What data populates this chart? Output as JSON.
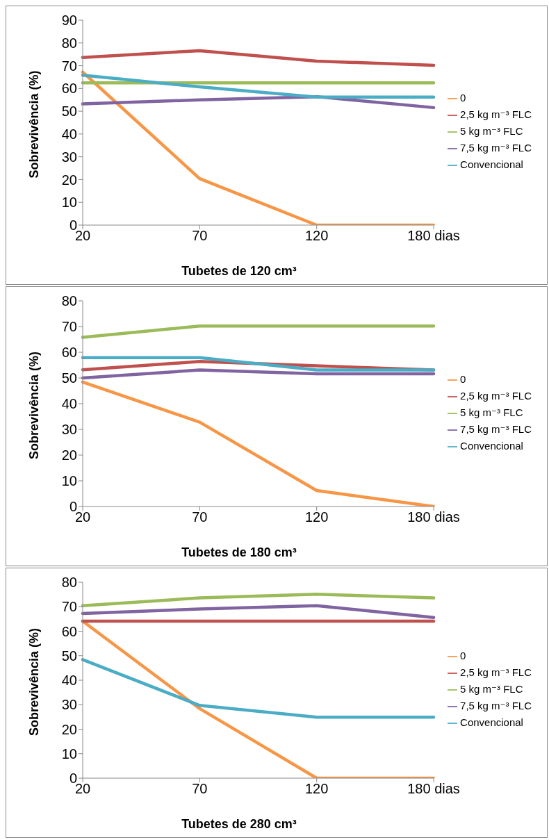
{
  "chart_data": [
    {
      "type": "line",
      "categories": [
        "20",
        "70",
        "120",
        "180 dias"
      ],
      "xlabel": "Tubetes de 120 cm³",
      "ylabel": "Sobrevivência (%)",
      "ylim": [
        0,
        90
      ],
      "yticks": [
        0,
        10,
        20,
        30,
        40,
        50,
        60,
        70,
        80,
        90
      ],
      "grid": false,
      "legend": "right",
      "marker": "none",
      "series": [
        {
          "name": "0",
          "color": "#f79646",
          "values": [
            67.2,
            20.4,
            0,
            0
          ]
        },
        {
          "name": "2,5 kg m⁻³ FLC",
          "color": "#c0504d",
          "values": [
            73.6,
            76.6,
            72,
            70.2
          ]
        },
        {
          "name": "5 kg m⁻³ FLC",
          "color": "#9bbb59",
          "values": [
            62.5,
            62.5,
            62.5,
            62.5
          ]
        },
        {
          "name": "7,5 kg m⁻³ FLC",
          "color": "#8064a2",
          "values": [
            53.2,
            55,
            56.4,
            51.6
          ]
        },
        {
          "name": "Convencional",
          "color": "#4bacc6",
          "values": [
            65.8,
            60.7,
            56.2,
            56.2
          ]
        }
      ]
    },
    {
      "type": "line",
      "categories": [
        "20",
        "70",
        "120",
        "180 dias"
      ],
      "xlabel": "Tubetes de 180 cm³",
      "ylabel": "Sobrevivência (%)",
      "ylim": [
        0,
        80
      ],
      "yticks": [
        0,
        10,
        20,
        30,
        40,
        50,
        60,
        70,
        80
      ],
      "grid": false,
      "legend": "right",
      "marker": "none",
      "series": [
        {
          "name": "0",
          "color": "#f79646",
          "values": [
            48.4,
            32.8,
            6.2,
            0
          ]
        },
        {
          "name": "2,5 kg m⁻³ FLC",
          "color": "#c0504d",
          "values": [
            53.2,
            56.4,
            54.7,
            53.1
          ]
        },
        {
          "name": "5 kg m⁻³ FLC",
          "color": "#9bbb59",
          "values": [
            65.8,
            70.2,
            70.2,
            70.2
          ]
        },
        {
          "name": "7,5 kg m⁻³ FLC",
          "color": "#8064a2",
          "values": [
            50,
            53.1,
            51.6,
            51.6
          ]
        },
        {
          "name": "Convencional",
          "color": "#4bacc6",
          "values": [
            57.9,
            57.9,
            53.1,
            53.1
          ]
        }
      ]
    },
    {
      "type": "line",
      "categories": [
        "20",
        "70",
        "120",
        "180 dias"
      ],
      "xlabel": "Tubetes de 280 cm³",
      "ylabel": "Sobrevivência (%)",
      "ylim": [
        0,
        80
      ],
      "yticks": [
        0,
        10,
        20,
        30,
        40,
        50,
        60,
        70,
        80
      ],
      "grid": false,
      "legend": "right",
      "marker": "none",
      "series": [
        {
          "name": "0",
          "color": "#f79646",
          "values": [
            64.1,
            28.4,
            0,
            0
          ]
        },
        {
          "name": "2,5 kg m⁻³ FLC",
          "color": "#c0504d",
          "values": [
            64.1,
            64.1,
            64.1,
            64.1
          ]
        },
        {
          "name": "5 kg m⁻³ FLC",
          "color": "#9bbb59",
          "values": [
            70.4,
            73.6,
            75.1,
            73.6
          ]
        },
        {
          "name": "7,5 kg m⁻³ FLC",
          "color": "#8064a2",
          "values": [
            67.2,
            69.1,
            70.4,
            65.6
          ]
        },
        {
          "name": "Convencional",
          "color": "#4bacc6",
          "values": [
            48.4,
            29.7,
            24.9,
            24.9
          ]
        }
      ]
    }
  ]
}
